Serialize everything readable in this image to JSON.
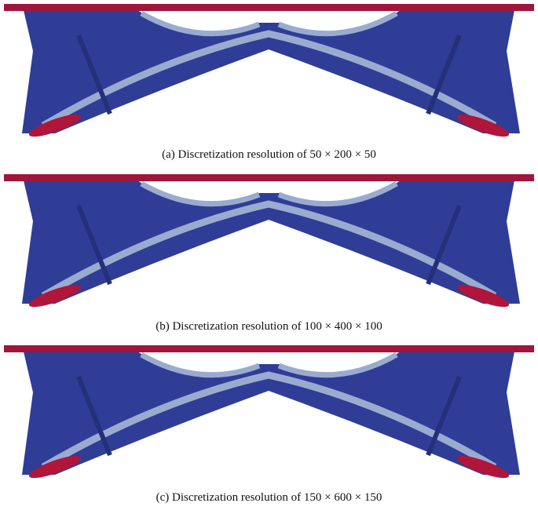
{
  "figure": {
    "panels": [
      {
        "caption": "(a) Discretization resolution of 50 × 200 × 50"
      },
      {
        "caption": "(b) Discretization resolution of 100 × 400 × 100"
      },
      {
        "caption": "(c) Discretization resolution of 150 × 600 × 150"
      }
    ]
  }
}
